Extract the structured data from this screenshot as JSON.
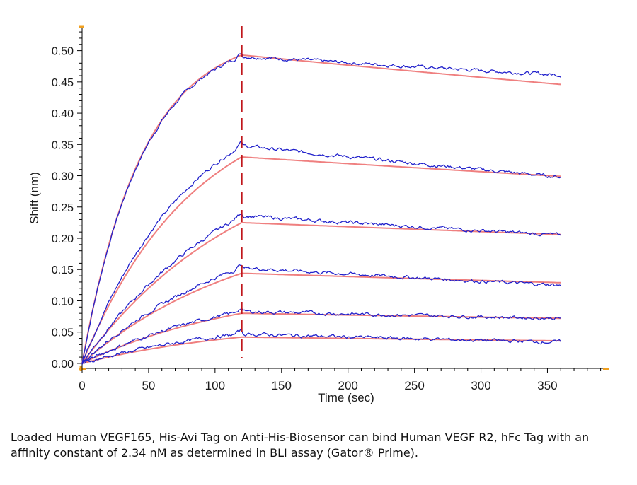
{
  "chart_data": {
    "type": "line",
    "xlabel": "Time (sec)",
    "ylabel": "Shift (nm)",
    "xlim": [
      0,
      395
    ],
    "ylim": [
      -0.008,
      0.538
    ],
    "x_ticks": [
      "0",
      "50",
      "100",
      "150",
      "200",
      "250",
      "300",
      "350"
    ],
    "y_ticks": [
      "0.00",
      "0.05",
      "0.10",
      "0.15",
      "0.20",
      "0.25",
      "0.30",
      "0.35",
      "0.40",
      "0.45",
      "0.50"
    ],
    "association_end_x": 120,
    "dissociation_end_x": 360,
    "colors": {
      "measured": "#2222cc",
      "fit": "#ef7f7f",
      "marker": "#c0161b",
      "axis_accent": "#f0a020"
    },
    "series": [
      {
        "kind": "measured",
        "peak": 0.491,
        "end": 0.461
      },
      {
        "kind": "fit",
        "peak": 0.493,
        "end": 0.446
      },
      {
        "kind": "measured",
        "peak": 0.348,
        "end": 0.298
      },
      {
        "kind": "fit",
        "peak": 0.33,
        "end": 0.299
      },
      {
        "kind": "measured",
        "peak": 0.236,
        "end": 0.205
      },
      {
        "kind": "fit",
        "peak": 0.225,
        "end": 0.206
      },
      {
        "kind": "measured",
        "peak": 0.153,
        "end": 0.125
      },
      {
        "kind": "fit",
        "peak": 0.144,
        "end": 0.129
      },
      {
        "kind": "measured",
        "peak": 0.083,
        "end": 0.072
      },
      {
        "kind": "fit",
        "peak": 0.08,
        "end": 0.072
      },
      {
        "kind": "measured",
        "peak": 0.047,
        "end": 0.034
      },
      {
        "kind": "fit",
        "peak": 0.042,
        "end": 0.036
      }
    ]
  },
  "caption": "Loaded Human VEGF165, His-Avi Tag on Anti-His-Biosensor can bind Human VEGF R2, hFc Tag with an affinity constant of 2.34 nM as determined in BLI assay (Gator® Prime)."
}
